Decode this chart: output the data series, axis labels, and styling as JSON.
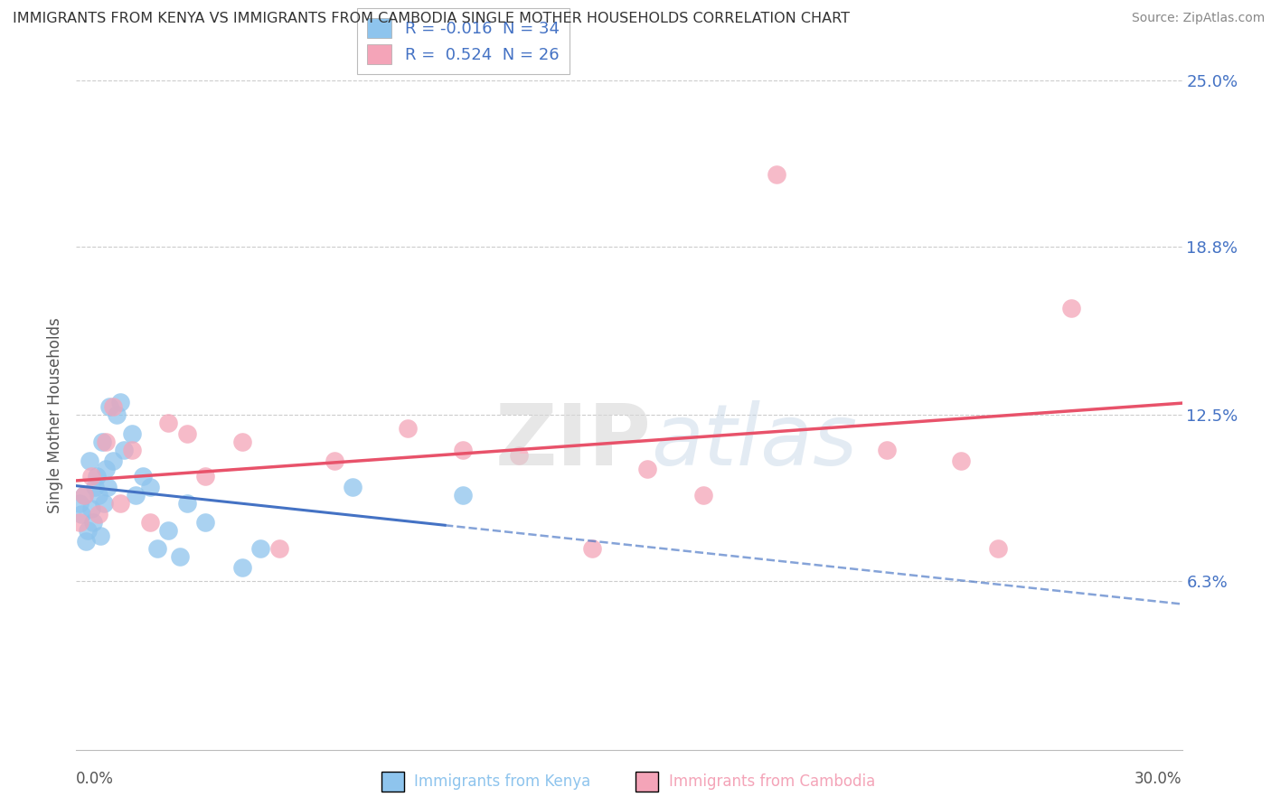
{
  "title": "IMMIGRANTS FROM KENYA VS IMMIGRANTS FROM CAMBODIA SINGLE MOTHER HOUSEHOLDS CORRELATION CHART",
  "source": "Source: ZipAtlas.com",
  "ylabel": "Single Mother Households",
  "xlim": [
    0.0,
    30.0
  ],
  "ylim": [
    0.0,
    25.0
  ],
  "ytick_vals": [
    6.3,
    12.5,
    18.8,
    25.0
  ],
  "ytick_labels": [
    "6.3%",
    "12.5%",
    "18.8%",
    "25.0%"
  ],
  "kenya_R": "-0.016",
  "kenya_N": "34",
  "cambodia_R": "0.524",
  "cambodia_N": "26",
  "kenya_color": "#8ec4ed",
  "cambodia_color": "#f4a4b8",
  "kenya_line_color": "#4472c4",
  "cambodia_line_color": "#e8526a",
  "background_color": "#ffffff",
  "grid_color": "#cccccc",
  "watermark_zip": "ZIP",
  "watermark_atlas": "atlas",
  "kenya_x": [
    0.1,
    0.15,
    0.2,
    0.25,
    0.3,
    0.35,
    0.4,
    0.45,
    0.5,
    0.55,
    0.6,
    0.65,
    0.7,
    0.75,
    0.8,
    0.85,
    0.9,
    1.0,
    1.1,
    1.2,
    1.3,
    1.5,
    1.6,
    1.8,
    2.0,
    2.2,
    2.5,
    2.8,
    3.0,
    3.5,
    4.5,
    5.0,
    7.5,
    10.5
  ],
  "kenya_y": [
    9.2,
    8.8,
    9.5,
    7.8,
    8.2,
    10.8,
    9.0,
    8.5,
    9.8,
    10.2,
    9.5,
    8.0,
    11.5,
    9.2,
    10.5,
    9.8,
    12.8,
    10.8,
    12.5,
    13.0,
    11.2,
    11.8,
    9.5,
    10.2,
    9.8,
    7.5,
    8.2,
    7.2,
    9.2,
    8.5,
    6.8,
    7.5,
    9.8,
    9.5
  ],
  "cambodia_x": [
    0.1,
    0.2,
    0.4,
    0.6,
    0.8,
    1.0,
    1.2,
    1.5,
    2.0,
    2.5,
    3.0,
    3.5,
    4.5,
    5.5,
    7.0,
    9.0,
    10.5,
    12.0,
    14.0,
    15.5,
    17.0,
    19.0,
    22.0,
    24.0,
    25.0,
    27.0
  ],
  "cambodia_y": [
    8.5,
    9.5,
    10.2,
    8.8,
    11.5,
    12.8,
    9.2,
    11.2,
    8.5,
    12.2,
    11.8,
    10.2,
    11.5,
    7.5,
    10.8,
    12.0,
    11.2,
    11.0,
    7.5,
    10.5,
    9.5,
    21.5,
    11.2,
    10.8,
    7.5,
    16.5
  ]
}
